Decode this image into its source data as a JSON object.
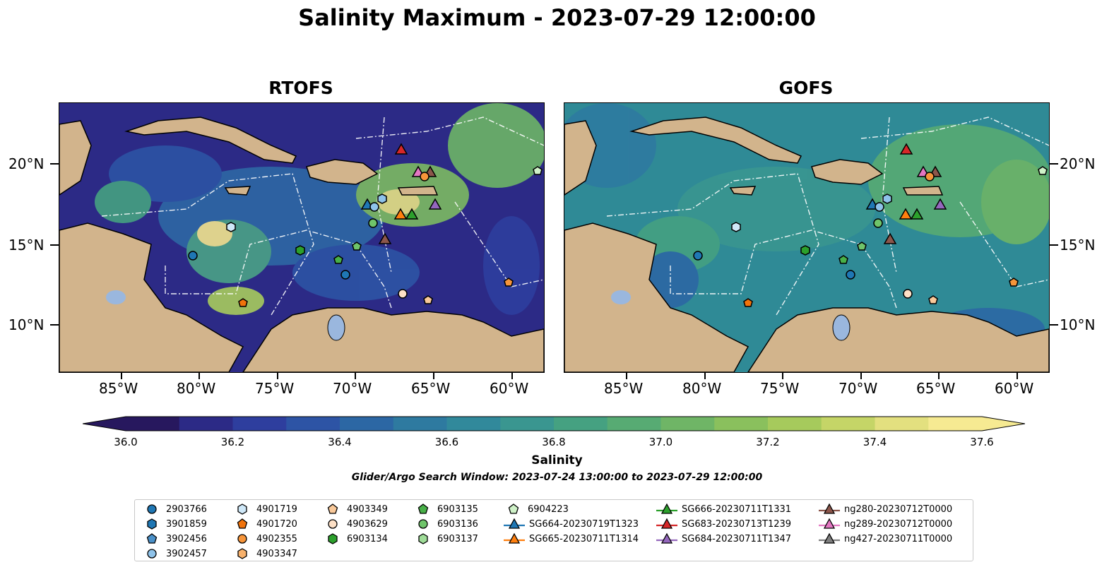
{
  "title": "Salinity Maximum - 2023-07-29 12:00:00",
  "panels": [
    {
      "title": "RTOFS",
      "id": "rtofs"
    },
    {
      "title": "GOFS",
      "id": "gofs"
    }
  ],
  "lat_labels": [
    "20°N",
    "15°N",
    "10°N"
  ],
  "lon_labels": [
    "85°W",
    "80°W",
    "75°W",
    "70°W",
    "65°W",
    "60°W"
  ],
  "colorbar": {
    "label": "Salinity",
    "ticks": [
      "36.0",
      "36.2",
      "36.4",
      "36.6",
      "36.8",
      "37.0",
      "37.2",
      "37.4",
      "37.6"
    ],
    "colors": [
      "#27185e",
      "#2c2a86",
      "#2e3e9e",
      "#2d54a5",
      "#2c67a4",
      "#2e7aa0",
      "#31899b",
      "#3a9690",
      "#45a181",
      "#57ab73",
      "#6fb566",
      "#8ac05d",
      "#a6ca5c",
      "#c5d567",
      "#e3e07f",
      "#f6ea92"
    ]
  },
  "search_window": "Glider/Argo Search Window: 2023-07-24 13:00:00 to 2023-07-29 12:00:00",
  "legend": [
    {
      "label": "2903766",
      "marker": "circle",
      "color": "#1f77b4"
    },
    {
      "label": "3901859",
      "marker": "hexagon",
      "color": "#1f77b4"
    },
    {
      "label": "3902456",
      "marker": "pentagon",
      "color": "#4a90c8"
    },
    {
      "label": "3902457",
      "marker": "circle",
      "color": "#8fc3ea"
    },
    {
      "label": "4901719",
      "marker": "hexagon",
      "color": "#cfe8f8"
    },
    {
      "label": "4901720",
      "marker": "pentagon",
      "color": "#f0730c"
    },
    {
      "label": "4902355",
      "marker": "circle",
      "color": "#f7953a"
    },
    {
      "label": "4903347",
      "marker": "hexagon",
      "color": "#f7b16c"
    },
    {
      "label": "4903349",
      "marker": "pentagon",
      "color": "#f9c99a"
    },
    {
      "label": "4903629",
      "marker": "circle",
      "color": "#fde0c6"
    },
    {
      "label": "6903134",
      "marker": "hexagon",
      "color": "#2ca02c"
    },
    {
      "label": "6903135",
      "marker": "pentagon",
      "color": "#48b048"
    },
    {
      "label": "6903136",
      "marker": "circle",
      "color": "#6fc46a"
    },
    {
      "label": "6903137",
      "marker": "hexagon",
      "color": "#9fdc98"
    },
    {
      "label": "6904223",
      "marker": "pentagon",
      "color": "#cff2c8"
    },
    {
      "label": "SG664-20230719T1323",
      "marker": "triangle-line",
      "color": "#1f77b4"
    },
    {
      "label": "SG665-20230711T1314",
      "marker": "triangle-line",
      "color": "#ff7f0e"
    },
    {
      "label": "SG666-20230711T1331",
      "marker": "triangle-line",
      "color": "#2ca02c"
    },
    {
      "label": "SG683-20230713T1239",
      "marker": "triangle-line",
      "color": "#d62728"
    },
    {
      "label": "SG684-20230711T1347",
      "marker": "triangle-line",
      "color": "#9467bd"
    },
    {
      "label": "ng280-20230712T0000",
      "marker": "triangle-line",
      "color": "#8c564b"
    },
    {
      "label": "ng289-20230712T0000",
      "marker": "triangle-line",
      "color": "#e377c2"
    },
    {
      "label": "ng427-20230711T0000",
      "marker": "triangle-line",
      "color": "#7f7f7f"
    }
  ],
  "map_colors": {
    "land": "#d2b48c",
    "lakes": "#9ab7de",
    "rtofs_base": "#2c2a86",
    "gofs_base": "#2f8a96"
  }
}
